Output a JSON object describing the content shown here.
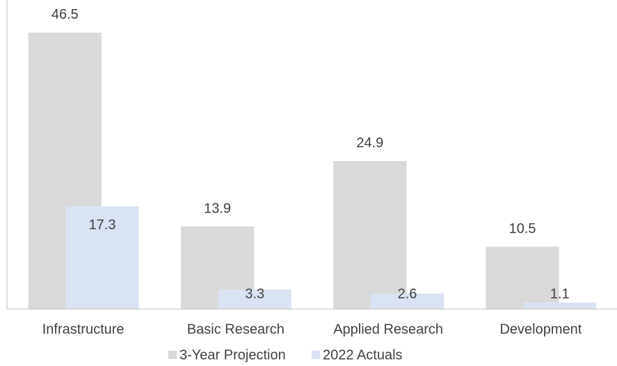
{
  "chart_data": {
    "type": "bar",
    "categories": [
      "Infrastructure",
      "Basic Research",
      "Applied Research",
      "Development"
    ],
    "series": [
      {
        "name": "3-Year Projection",
        "color": "#d9d9d9",
        "values": [
          46.5,
          13.9,
          24.9,
          10.5
        ]
      },
      {
        "name": "2022 Actuals",
        "color": "#dae3f3",
        "values": [
          17.3,
          3.3,
          2.6,
          1.1
        ]
      }
    ],
    "ylim": [
      0,
      50
    ],
    "legend": "bottom"
  }
}
